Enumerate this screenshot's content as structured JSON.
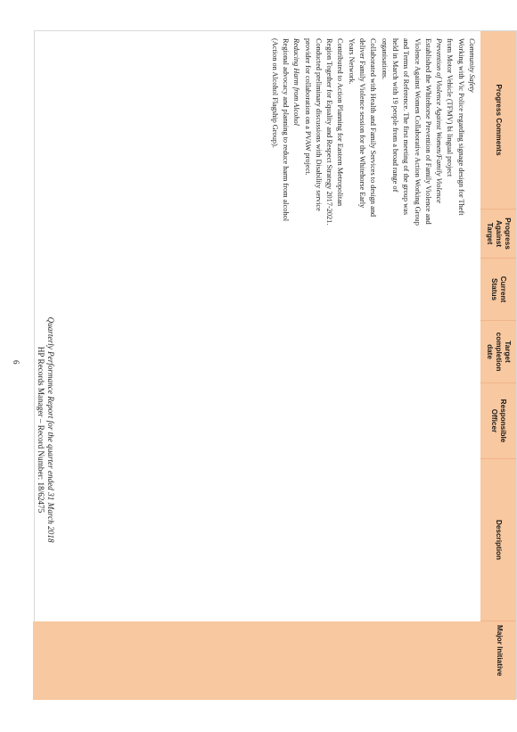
{
  "table": {
    "headers": [
      "Progress Comments",
      "Progress Against Target",
      "Current Status",
      "Target completion date",
      "Responsible Officer",
      "Description",
      "Major Initiative"
    ],
    "comments": [
      {
        "text": "Community Safety",
        "italic": true
      },
      {
        "text": "Working with Vic Police regarding signage design for Theft from Motor Vehicle (TFMV) bi lingual project",
        "italic": false
      },
      {
        "text": "Prevention of Violence Against Women/Family Violence",
        "italic": true
      },
      {
        "text": "Established the Whitehorse Prevention of Family Violence and Violence Against Women Collaborative Action Working Group and Terms of Reference. The first meeting of the group was held in March with 19 people from a broad range of organisations.",
        "italic": false
      },
      {
        "text": "Collaborated with Health and Family Services to design and deliver Family Violence session for the Whitehorse Early Years Network.",
        "italic": false
      },
      {
        "text": "Contributed to Action Planning for Eastern Metropolitan Region Together for Equality and Respect Strategy 2017-2021.",
        "italic": false
      },
      {
        "text": "Conducted preliminary discussions with Disability service provider for collaboration on a PVAW project.",
        "italic": false
      },
      {
        "text": "Reducing Harm from Alcohol",
        "italic": true
      },
      {
        "text": "Regional advocacy and planning to reduce harm from alcohol (Action on Alcohol Flagship Group).",
        "italic": false
      }
    ]
  },
  "page_number": "6",
  "footer": {
    "line1": "Quarterly Performance Report for the quarter ended 31 March 2018",
    "line2": "HP Records Manager – Record Number: 18/62475"
  },
  "colors": {
    "header_fill": "#f8c8a0"
  }
}
